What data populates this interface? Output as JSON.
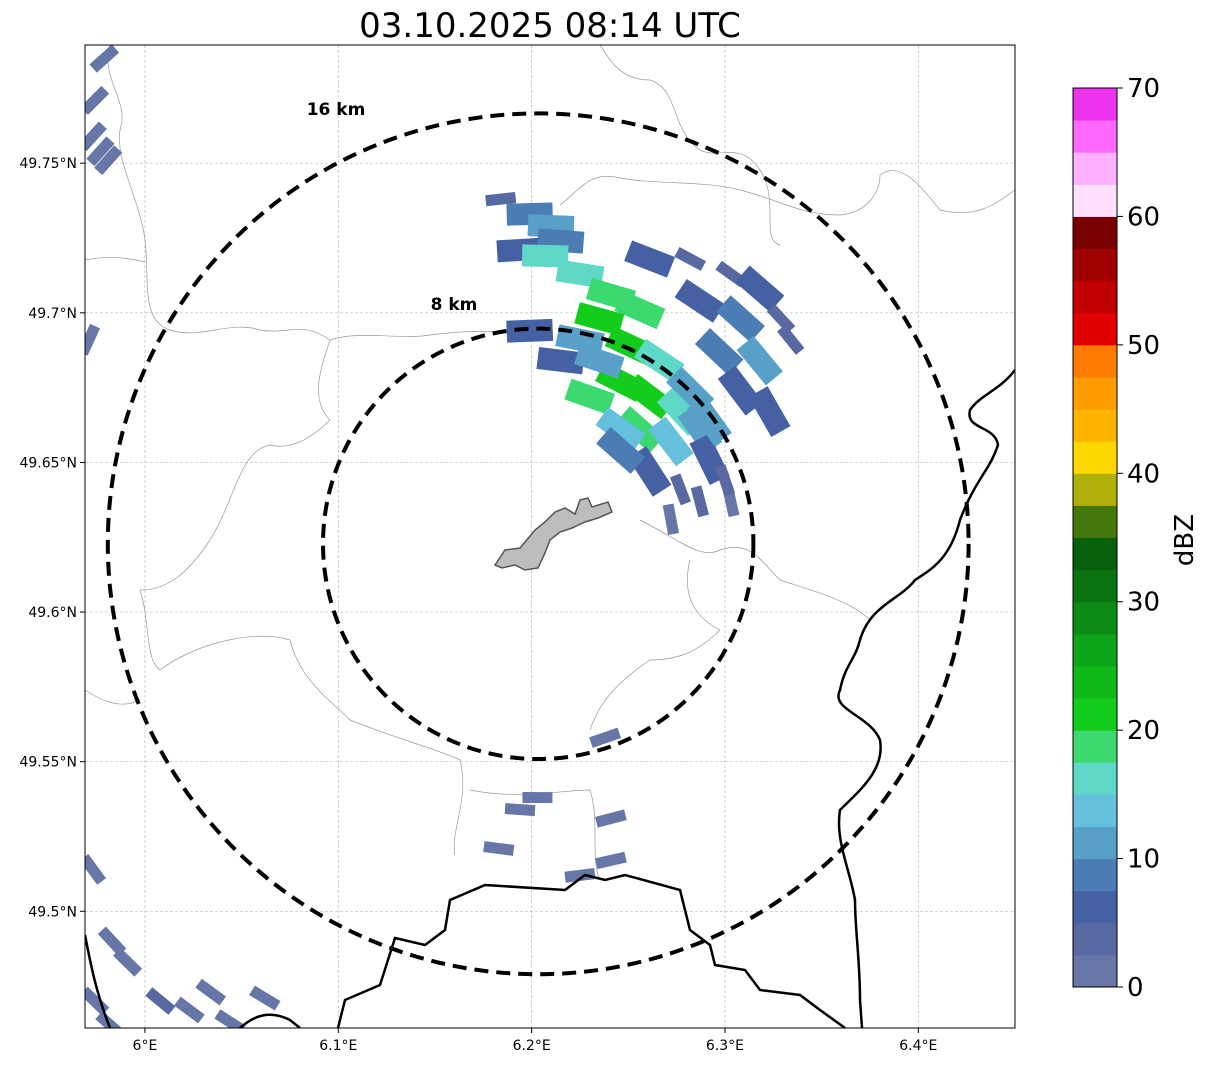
{
  "title": "03.10.2025 08:14 UTC",
  "rings": [
    {
      "label": "8 km",
      "radius_km": 8
    },
    {
      "label": "16 km",
      "radius_km": 16
    }
  ],
  "colorbar": {
    "label": "dBZ",
    "ticks": [
      "0",
      "10",
      "20",
      "30",
      "40",
      "50",
      "60",
      "70"
    ],
    "min": 0,
    "max": 70,
    "step": 2.5,
    "colors": [
      "#6676a6",
      "#5868a0",
      "#4660a4",
      "#4c7cb4",
      "#58a0c8",
      "#64c0dc",
      "#60d8c8",
      "#3cd870",
      "#14cc1c",
      "#10b818",
      "#0ca418",
      "#0c8c14",
      "#0a7410",
      "#06600c",
      "#44780c",
      "#b0b00c",
      "#ffd800",
      "#ffb400",
      "#ff9c00",
      "#ff7c00",
      "#e00000",
      "#c00000",
      "#a00000",
      "#780000",
      "#ffe0ff",
      "#ffb0ff",
      "#ff68ff",
      "#ee33ee"
    ]
  },
  "chart_data": {
    "type": "map",
    "title": "03.10.2025 08:14 UTC",
    "radar_center": {
      "lon": 6.2034,
      "lat": 49.6228
    },
    "xlim": [
      5.969,
      6.45
    ],
    "ylim": [
      49.461,
      49.7895
    ],
    "x_ticks": [
      "6°E",
      "6.1°E",
      "6.2°E",
      "6.3°E",
      "6.4°E"
    ],
    "x_tick_values": [
      6.0,
      6.1,
      6.2,
      6.3,
      6.4
    ],
    "y_ticks": [
      "49.75°N",
      "49.7°N",
      "49.65°N",
      "49.6°N",
      "49.55°N",
      "49.5°N"
    ],
    "y_tick_values": [
      49.75,
      49.7,
      49.65,
      49.6,
      49.55,
      49.5
    ],
    "grid": true,
    "cells": [
      [
        6.184,
        49.738,
        3
      ],
      [
        6.199,
        49.733,
        8
      ],
      [
        6.21,
        49.729,
        10
      ],
      [
        6.194,
        49.721,
        5
      ],
      [
        6.215,
        49.724,
        8
      ],
      [
        6.207,
        49.719,
        15
      ],
      [
        6.225,
        49.713,
        17
      ],
      [
        6.241,
        49.706,
        19
      ],
      [
        6.256,
        49.701,
        18
      ],
      [
        6.235,
        49.698,
        21
      ],
      [
        6.251,
        49.689,
        20
      ],
      [
        6.266,
        49.684,
        15
      ],
      [
        6.246,
        49.677,
        22
      ],
      [
        6.261,
        49.672,
        22
      ],
      [
        6.277,
        49.667,
        16
      ],
      [
        6.23,
        49.672,
        18
      ],
      [
        6.256,
        49.661,
        18
      ],
      [
        6.272,
        49.657,
        13
      ],
      [
        6.287,
        49.661,
        10
      ],
      [
        6.246,
        49.661,
        13
      ],
      [
        6.261,
        49.718,
        5
      ],
      [
        6.282,
        49.718,
        3
      ],
      [
        6.303,
        49.713,
        3
      ],
      [
        6.318,
        49.708,
        5
      ],
      [
        6.287,
        49.704,
        6
      ],
      [
        6.308,
        49.698,
        8
      ],
      [
        6.329,
        49.698,
        3
      ],
      [
        6.297,
        49.687,
        9
      ],
      [
        6.318,
        49.684,
        10
      ],
      [
        6.334,
        49.691,
        3
      ],
      [
        6.308,
        49.674,
        7
      ],
      [
        6.323,
        49.667,
        5
      ],
      [
        6.292,
        49.651,
        5
      ],
      [
        6.277,
        49.641,
        3
      ],
      [
        6.261,
        49.647,
        6
      ],
      [
        6.246,
        49.654,
        8
      ],
      [
        6.287,
        49.637,
        3
      ],
      [
        6.303,
        49.637,
        2
      ],
      [
        6.272,
        49.631,
        2
      ],
      [
        6.3,
        49.644,
        3
      ],
      [
        6.215,
        49.684,
        5
      ],
      [
        6.199,
        49.694,
        7
      ],
      [
        6.235,
        49.684,
        12
      ],
      [
        6.225,
        49.691,
        11
      ],
      [
        6.282,
        49.674,
        11
      ],
      [
        6.292,
        49.664,
        12
      ],
      [
        6.238,
        49.558,
        2
      ],
      [
        6.194,
        49.534,
        2
      ],
      [
        6.203,
        49.538,
        2
      ],
      [
        6.183,
        49.521,
        2
      ],
      [
        6.241,
        49.531,
        2
      ],
      [
        6.225,
        49.512,
        2
      ],
      [
        6.241,
        49.517,
        2
      ],
      [
        5.973,
        49.514,
        2
      ],
      [
        5.983,
        49.49,
        2
      ],
      [
        5.991,
        49.483,
        2
      ],
      [
        6.008,
        49.47,
        3
      ],
      [
        6.034,
        49.473,
        2
      ],
      [
        6.023,
        49.467,
        2
      ],
      [
        6.062,
        49.471,
        2
      ],
      [
        5.974,
        49.47,
        2
      ],
      [
        5.977,
        49.754,
        2
      ],
      [
        5.974,
        49.771,
        2
      ],
      [
        5.979,
        49.785,
        2
      ],
      [
        5.973,
        49.759,
        2
      ],
      [
        5.981,
        49.751,
        2
      ],
      [
        5.971,
        49.691,
        2
      ],
      [
        6.044,
        49.463,
        2
      ],
      [
        5.982,
        49.462,
        2
      ]
    ]
  }
}
